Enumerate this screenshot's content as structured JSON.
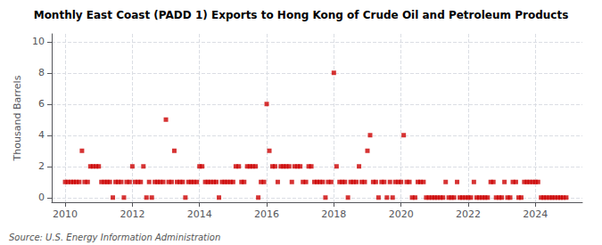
{
  "chart_data": {
    "type": "scatter",
    "title": "Monthly East Coast (PADD 1) Exports to Hong Kong of Crude Oil and Petroleum Products",
    "ylabel": "Thousand Barrels",
    "annotations": [
      "Source: U.S. Energy Information Administration"
    ],
    "color": "#cc0000",
    "marker": "square",
    "grid": true,
    "xlim": [
      2009.6,
      2025.4
    ],
    "xticks": [
      2010,
      2012,
      2014,
      2016,
      2018,
      2020,
      2022,
      2024
    ],
    "ylim": [
      -0.3,
      10.5
    ],
    "yticks": [
      0,
      2,
      4,
      6,
      8,
      10
    ],
    "x": [
      2010.0,
      2010.08,
      2010.17,
      2010.25,
      2010.33,
      2010.42,
      2010.5,
      2010.58,
      2010.67,
      2010.75,
      2010.83,
      2010.92,
      2011.0,
      2011.08,
      2011.17,
      2011.25,
      2011.33,
      2011.42,
      2011.5,
      2011.58,
      2011.67,
      2011.75,
      2011.83,
      2011.92,
      2012.0,
      2012.08,
      2012.17,
      2012.25,
      2012.33,
      2012.42,
      2012.5,
      2012.58,
      2012.67,
      2012.75,
      2012.83,
      2012.92,
      2013.0,
      2013.08,
      2013.17,
      2013.25,
      2013.33,
      2013.42,
      2013.5,
      2013.58,
      2013.67,
      2013.75,
      2013.83,
      2013.92,
      2014.0,
      2014.08,
      2014.17,
      2014.25,
      2014.33,
      2014.42,
      2014.5,
      2014.58,
      2014.67,
      2014.75,
      2014.83,
      2014.92,
      2015.0,
      2015.08,
      2015.17,
      2015.25,
      2015.33,
      2015.42,
      2015.5,
      2015.58,
      2015.67,
      2015.75,
      2015.83,
      2015.92,
      2016.0,
      2016.08,
      2016.17,
      2016.25,
      2016.33,
      2016.42,
      2016.5,
      2016.58,
      2016.67,
      2016.75,
      2016.83,
      2016.92,
      2017.0,
      2017.08,
      2017.17,
      2017.25,
      2017.33,
      2017.42,
      2017.5,
      2017.58,
      2017.67,
      2017.75,
      2017.83,
      2017.92,
      2018.0,
      2018.08,
      2018.17,
      2018.25,
      2018.33,
      2018.42,
      2018.5,
      2018.58,
      2018.67,
      2018.75,
      2018.83,
      2018.92,
      2019.0,
      2019.08,
      2019.17,
      2019.25,
      2019.33,
      2019.42,
      2019.5,
      2019.58,
      2019.67,
      2019.75,
      2019.83,
      2019.92,
      2020.0,
      2020.08,
      2020.17,
      2020.25,
      2020.33,
      2020.42,
      2020.5,
      2020.58,
      2020.67,
      2020.75,
      2020.83,
      2020.92,
      2021.0,
      2021.08,
      2021.17,
      2021.25,
      2021.33,
      2021.42,
      2021.5,
      2021.58,
      2021.67,
      2021.75,
      2021.83,
      2021.92,
      2022.0,
      2022.08,
      2022.17,
      2022.25,
      2022.33,
      2022.42,
      2022.5,
      2022.58,
      2022.67,
      2022.75,
      2022.83,
      2022.92,
      2023.0,
      2023.08,
      2023.17,
      2023.25,
      2023.33,
      2023.42,
      2023.5,
      2023.58,
      2023.67,
      2023.75,
      2023.83,
      2023.92,
      2024.0,
      2024.08,
      2024.17,
      2024.25,
      2024.33,
      2024.42,
      2024.5,
      2024.58,
      2024.67,
      2024.75,
      2024.83,
      2024.92
    ],
    "values": [
      1,
      1,
      1,
      1,
      1,
      1,
      3,
      1,
      1,
      2,
      2,
      2,
      2,
      1,
      1,
      1,
      1,
      0,
      1,
      1,
      1,
      0,
      1,
      1,
      2,
      1,
      1,
      1,
      2,
      0,
      1,
      0,
      1,
      1,
      1,
      1,
      5,
      1,
      1,
      3,
      1,
      1,
      1,
      0,
      1,
      1,
      1,
      1,
      2,
      2,
      1,
      1,
      1,
      1,
      1,
      0,
      1,
      1,
      1,
      1,
      1,
      2,
      2,
      1,
      1,
      2,
      2,
      2,
      2,
      0,
      1,
      1,
      6,
      3,
      2,
      2,
      1,
      2,
      2,
      2,
      2,
      1,
      2,
      2,
      2,
      1,
      1,
      2,
      2,
      1,
      1,
      1,
      1,
      0,
      1,
      1,
      8,
      2,
      1,
      1,
      1,
      0,
      1,
      1,
      1,
      2,
      1,
      1,
      3,
      4,
      1,
      1,
      0,
      1,
      1,
      0,
      1,
      0,
      1,
      1,
      1,
      4,
      1,
      1,
      0,
      0,
      1,
      1,
      1,
      0,
      0,
      0,
      0,
      0,
      0,
      0,
      1,
      0,
      0,
      0,
      1,
      0,
      0,
      0,
      0,
      0,
      1,
      0,
      0,
      0,
      0,
      0,
      1,
      1,
      0,
      0,
      0,
      1,
      0,
      0,
      1,
      1,
      0,
      0,
      1,
      1,
      1,
      1,
      1,
      1,
      0,
      0,
      0,
      0,
      0,
      0,
      0,
      0,
      0,
      0
    ]
  }
}
